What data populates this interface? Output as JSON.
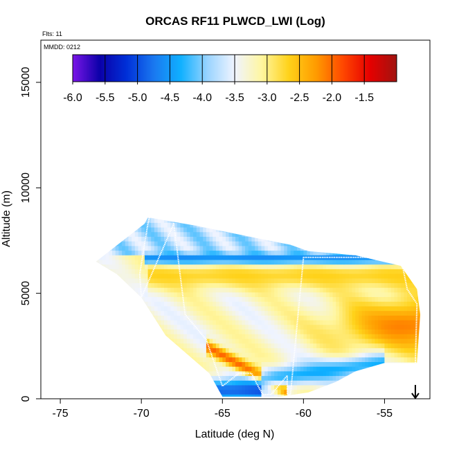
{
  "chart_data": {
    "type": "heatmap",
    "title": "ORCAS RF11 PLWCD_LWI (Log)",
    "annotations": {
      "flights": "Flts: 11",
      "date": "MMDD: 0212"
    },
    "xlabel": "Latitude (deg N)",
    "ylabel": "Altitude (m)",
    "xlim": [
      -76.2,
      -52.2
    ],
    "ylim": [
      0,
      17000
    ],
    "x_ticks": [
      -75,
      -70,
      -65,
      -60,
      -55
    ],
    "x_tick_labels": [
      "-75",
      "-70",
      "-65",
      "-60",
      "-55"
    ],
    "y_ticks": [
      0,
      5000,
      10000,
      15000
    ],
    "y_tick_labels": [
      "0",
      "5000",
      "10000",
      "15000"
    ],
    "colorbar": {
      "range": [
        -6.0,
        -1.0
      ],
      "ticks": [
        -6.0,
        -5.5,
        -5.0,
        -4.5,
        -4.0,
        -3.5,
        -3.0,
        -2.5,
        -2.0,
        -1.5
      ],
      "tick_labels": [
        "-6.0",
        "-5.5",
        "-5.0",
        "-4.5",
        "-4.0",
        "-3.5",
        "-3.0",
        "-2.5",
        "-2.0",
        "-1.5"
      ],
      "colors": [
        "#7b16e8",
        "#0b00a8",
        "#0030d8",
        "#1a78f0",
        "#10b0ff",
        "#9ad4ff",
        "#f0f4ff",
        "#fff6a0",
        "#ffd21a",
        "#ff9c00",
        "#ff4800",
        "#e60000",
        "#a01410"
      ]
    },
    "data_extent": {
      "outline_lat": [
        -72.8,
        -69.8,
        -69.6,
        -66.6,
        -62.8,
        -60.8,
        -59.7,
        -56.8,
        -54.0,
        -53.0,
        -52.8,
        -53.0,
        -55.0,
        -56.8,
        -58.0,
        -59.7,
        -61.5,
        -62.8,
        -65.0,
        -65.8,
        -68.5,
        -70.0,
        -71.5,
        -72.8
      ],
      "outline_alt": [
        6500,
        8300,
        8600,
        8200,
        7600,
        7300,
        7000,
        6800,
        6300,
        5200,
        4000,
        1700,
        1700,
        1300,
        800,
        300,
        100,
        100,
        100,
        1200,
        3000,
        4800,
        5900,
        6500
      ]
    },
    "flight_track": {
      "lat": [
        -69.5,
        -69.6,
        -70.1,
        -70.0,
        -68.0,
        -67.3,
        -66.0,
        -65.0,
        -64.0,
        -63.2,
        -62.8,
        -62.5,
        -62.0,
        -61.0,
        -61.0,
        -60.8,
        -60.0,
        -54.0,
        -53.6,
        -53.0,
        -53.1
      ],
      "alt": [
        8600,
        8300,
        5900,
        4800,
        8300,
        4000,
        2800,
        600,
        1200,
        1200,
        600,
        200,
        200,
        1100,
        200,
        200,
        6700,
        6700,
        5200,
        4500,
        1700
      ]
    },
    "color_structure": [
      {
        "feature": "cirrus anvil",
        "lat": [
          -70.5,
          -62.0
        ],
        "alt": [
          7000,
          8500
        ],
        "log_value": -3.8
      },
      {
        "feature": "blue band",
        "lat": [
          -69.8,
          -54.0
        ],
        "alt": [
          6500,
          6800
        ],
        "log_value": -4.8
      },
      {
        "feature": "yellow-orange band",
        "lat": [
          -69.5,
          -53.5
        ],
        "alt": [
          5400,
          6300
        ],
        "log_value": -2.6
      },
      {
        "feature": "wedge core",
        "lat": [
          -58.0,
          -53.0
        ],
        "alt": [
          2500,
          4500
        ],
        "log_value": -1.9
      },
      {
        "feature": "diagonal red streak",
        "lat": [
          -66.0,
          -61.0
        ],
        "alt": [
          300,
          2500
        ],
        "log_value": -1.8
      },
      {
        "feature": "lower blue layer",
        "lat": [
          -62.5,
          -55.0
        ],
        "alt": [
          400,
          1800
        ],
        "log_value": -4.6
      }
    ],
    "marker": {
      "type": "down-arrow",
      "lat": -53.1,
      "alt": 0
    }
  }
}
